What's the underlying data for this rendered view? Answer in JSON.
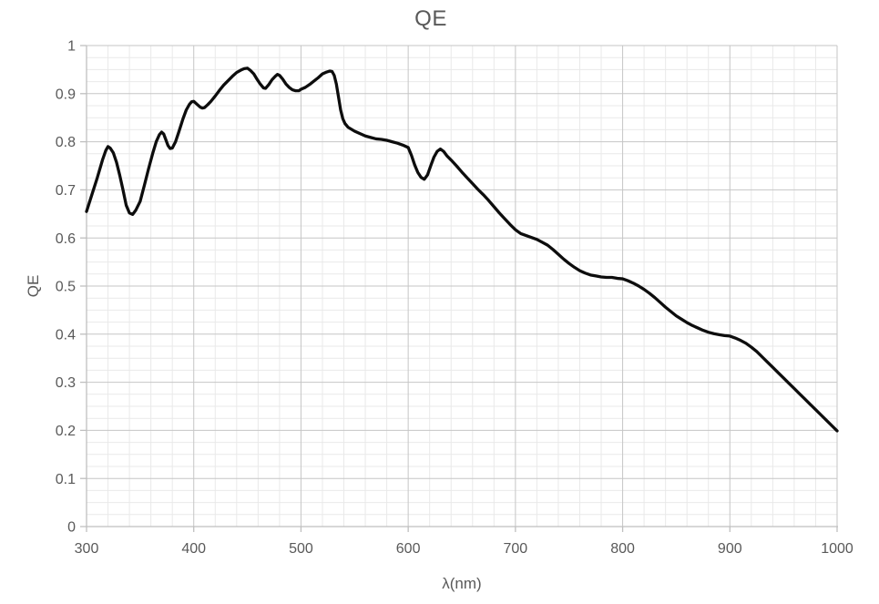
{
  "colors": {
    "background": "#ffffff",
    "text": "#595959",
    "axis": "#bfbfbf",
    "grid_major": "#c6c6c6",
    "grid_minor": "#e9e9e9",
    "line": "#0d0d0d"
  },
  "chart_data": {
    "type": "line",
    "title": "QE",
    "xlabel": "λ(nm)",
    "ylabel": "QE",
    "xlim": [
      300,
      1000
    ],
    "ylim": [
      0,
      1
    ],
    "grid": {
      "major": true,
      "minor": true
    },
    "x_minor_step": 20,
    "y_minor_step": 0.025,
    "legend_position": "none",
    "x_ticks": [
      {
        "value": 300,
        "label": "300"
      },
      {
        "value": 400,
        "label": "400"
      },
      {
        "value": 500,
        "label": "500"
      },
      {
        "value": 600,
        "label": "600"
      },
      {
        "value": 700,
        "label": "700"
      },
      {
        "value": 800,
        "label": "800"
      },
      {
        "value": 900,
        "label": "900"
      },
      {
        "value": 1000,
        "label": "1000"
      }
    ],
    "y_ticks": [
      {
        "value": 0,
        "label": "0"
      },
      {
        "value": 0.1,
        "label": "0.1"
      },
      {
        "value": 0.2,
        "label": "0.2"
      },
      {
        "value": 0.3,
        "label": "0.3"
      },
      {
        "value": 0.4,
        "label": "0.4"
      },
      {
        "value": 0.5,
        "label": "0.5"
      },
      {
        "value": 0.6,
        "label": "0.6"
      },
      {
        "value": 0.7,
        "label": "0.7"
      },
      {
        "value": 0.8,
        "label": "0.8"
      },
      {
        "value": 0.9,
        "label": "0.9"
      },
      {
        "value": 1,
        "label": "1"
      }
    ],
    "series": [
      {
        "name": "QE",
        "color": "#0d0d0d",
        "stroke_width": 3.3,
        "points": [
          [
            300,
            0.655
          ],
          [
            305,
            0.69
          ],
          [
            310,
            0.725
          ],
          [
            315,
            0.763
          ],
          [
            318,
            0.782
          ],
          [
            320,
            0.79
          ],
          [
            322,
            0.787
          ],
          [
            325,
            0.777
          ],
          [
            328,
            0.757
          ],
          [
            331,
            0.73
          ],
          [
            334,
            0.7
          ],
          [
            337,
            0.668
          ],
          [
            340,
            0.652
          ],
          [
            343,
            0.649
          ],
          [
            346,
            0.658
          ],
          [
            350,
            0.676
          ],
          [
            354,
            0.71
          ],
          [
            358,
            0.745
          ],
          [
            362,
            0.778
          ],
          [
            365,
            0.8
          ],
          [
            368,
            0.815
          ],
          [
            370,
            0.82
          ],
          [
            372,
            0.816
          ],
          [
            374,
            0.804
          ],
          [
            376,
            0.792
          ],
          [
            378,
            0.786
          ],
          [
            380,
            0.787
          ],
          [
            383,
            0.8
          ],
          [
            386,
            0.82
          ],
          [
            390,
            0.848
          ],
          [
            393,
            0.866
          ],
          [
            396,
            0.878
          ],
          [
            398,
            0.883
          ],
          [
            400,
            0.884
          ],
          [
            403,
            0.878
          ],
          [
            406,
            0.872
          ],
          [
            408,
            0.87
          ],
          [
            410,
            0.871
          ],
          [
            413,
            0.877
          ],
          [
            416,
            0.884
          ],
          [
            420,
            0.895
          ],
          [
            424,
            0.907
          ],
          [
            428,
            0.918
          ],
          [
            432,
            0.927
          ],
          [
            436,
            0.936
          ],
          [
            440,
            0.944
          ],
          [
            444,
            0.949
          ],
          [
            447,
            0.952
          ],
          [
            450,
            0.953
          ],
          [
            453,
            0.948
          ],
          [
            456,
            0.941
          ],
          [
            459,
            0.93
          ],
          [
            462,
            0.92
          ],
          [
            465,
            0.912
          ],
          [
            467,
            0.911
          ],
          [
            470,
            0.919
          ],
          [
            473,
            0.929
          ],
          [
            476,
            0.936
          ],
          [
            478,
            0.94
          ],
          [
            480,
            0.938
          ],
          [
            483,
            0.93
          ],
          [
            486,
            0.92
          ],
          [
            489,
            0.913
          ],
          [
            492,
            0.908
          ],
          [
            495,
            0.906
          ],
          [
            498,
            0.906
          ],
          [
            500,
            0.909
          ],
          [
            504,
            0.913
          ],
          [
            508,
            0.919
          ],
          [
            512,
            0.926
          ],
          [
            516,
            0.933
          ],
          [
            520,
            0.941
          ],
          [
            524,
            0.945
          ],
          [
            527,
            0.947
          ],
          [
            529,
            0.946
          ],
          [
            531,
            0.938
          ],
          [
            533,
            0.92
          ],
          [
            535,
            0.893
          ],
          [
            537,
            0.866
          ],
          [
            539,
            0.848
          ],
          [
            541,
            0.838
          ],
          [
            544,
            0.83
          ],
          [
            547,
            0.826
          ],
          [
            550,
            0.822
          ],
          [
            555,
            0.817
          ],
          [
            560,
            0.812
          ],
          [
            565,
            0.809
          ],
          [
            570,
            0.806
          ],
          [
            575,
            0.805
          ],
          [
            580,
            0.803
          ],
          [
            585,
            0.8
          ],
          [
            590,
            0.797
          ],
          [
            595,
            0.793
          ],
          [
            600,
            0.788
          ],
          [
            603,
            0.772
          ],
          [
            606,
            0.752
          ],
          [
            609,
            0.736
          ],
          [
            612,
            0.726
          ],
          [
            615,
            0.722
          ],
          [
            618,
            0.731
          ],
          [
            621,
            0.75
          ],
          [
            624,
            0.768
          ],
          [
            627,
            0.78
          ],
          [
            630,
            0.785
          ],
          [
            633,
            0.78
          ],
          [
            636,
            0.771
          ],
          [
            640,
            0.762
          ],
          [
            645,
            0.75
          ],
          [
            650,
            0.737
          ],
          [
            655,
            0.725
          ],
          [
            660,
            0.713
          ],
          [
            665,
            0.701
          ],
          [
            670,
            0.69
          ],
          [
            675,
            0.678
          ],
          [
            680,
            0.665
          ],
          [
            685,
            0.652
          ],
          [
            690,
            0.64
          ],
          [
            695,
            0.628
          ],
          [
            700,
            0.617
          ],
          [
            705,
            0.609
          ],
          [
            710,
            0.605
          ],
          [
            715,
            0.601
          ],
          [
            720,
            0.597
          ],
          [
            725,
            0.591
          ],
          [
            730,
            0.585
          ],
          [
            735,
            0.576
          ],
          [
            740,
            0.566
          ],
          [
            745,
            0.556
          ],
          [
            750,
            0.547
          ],
          [
            755,
            0.539
          ],
          [
            760,
            0.532
          ],
          [
            765,
            0.527
          ],
          [
            770,
            0.523
          ],
          [
            775,
            0.521
          ],
          [
            780,
            0.519
          ],
          [
            785,
            0.518
          ],
          [
            790,
            0.518
          ],
          [
            795,
            0.516
          ],
          [
            800,
            0.515
          ],
          [
            805,
            0.511
          ],
          [
            810,
            0.506
          ],
          [
            815,
            0.5
          ],
          [
            820,
            0.493
          ],
          [
            825,
            0.485
          ],
          [
            830,
            0.476
          ],
          [
            835,
            0.466
          ],
          [
            840,
            0.456
          ],
          [
            845,
            0.447
          ],
          [
            850,
            0.438
          ],
          [
            855,
            0.431
          ],
          [
            860,
            0.424
          ],
          [
            865,
            0.418
          ],
          [
            870,
            0.413
          ],
          [
            875,
            0.408
          ],
          [
            880,
            0.404
          ],
          [
            885,
            0.401
          ],
          [
            890,
            0.399
          ],
          [
            895,
            0.397
          ],
          [
            900,
            0.396
          ],
          [
            905,
            0.392
          ],
          [
            910,
            0.387
          ],
          [
            915,
            0.381
          ],
          [
            920,
            0.373
          ],
          [
            925,
            0.364
          ],
          [
            930,
            0.353
          ],
          [
            935,
            0.342
          ],
          [
            940,
            0.331
          ],
          [
            945,
            0.32
          ],
          [
            950,
            0.309
          ],
          [
            955,
            0.298
          ],
          [
            960,
            0.287
          ],
          [
            965,
            0.276
          ],
          [
            970,
            0.265
          ],
          [
            975,
            0.254
          ],
          [
            980,
            0.243
          ],
          [
            985,
            0.232
          ],
          [
            990,
            0.221
          ],
          [
            995,
            0.21
          ],
          [
            1000,
            0.199
          ]
        ]
      }
    ]
  }
}
